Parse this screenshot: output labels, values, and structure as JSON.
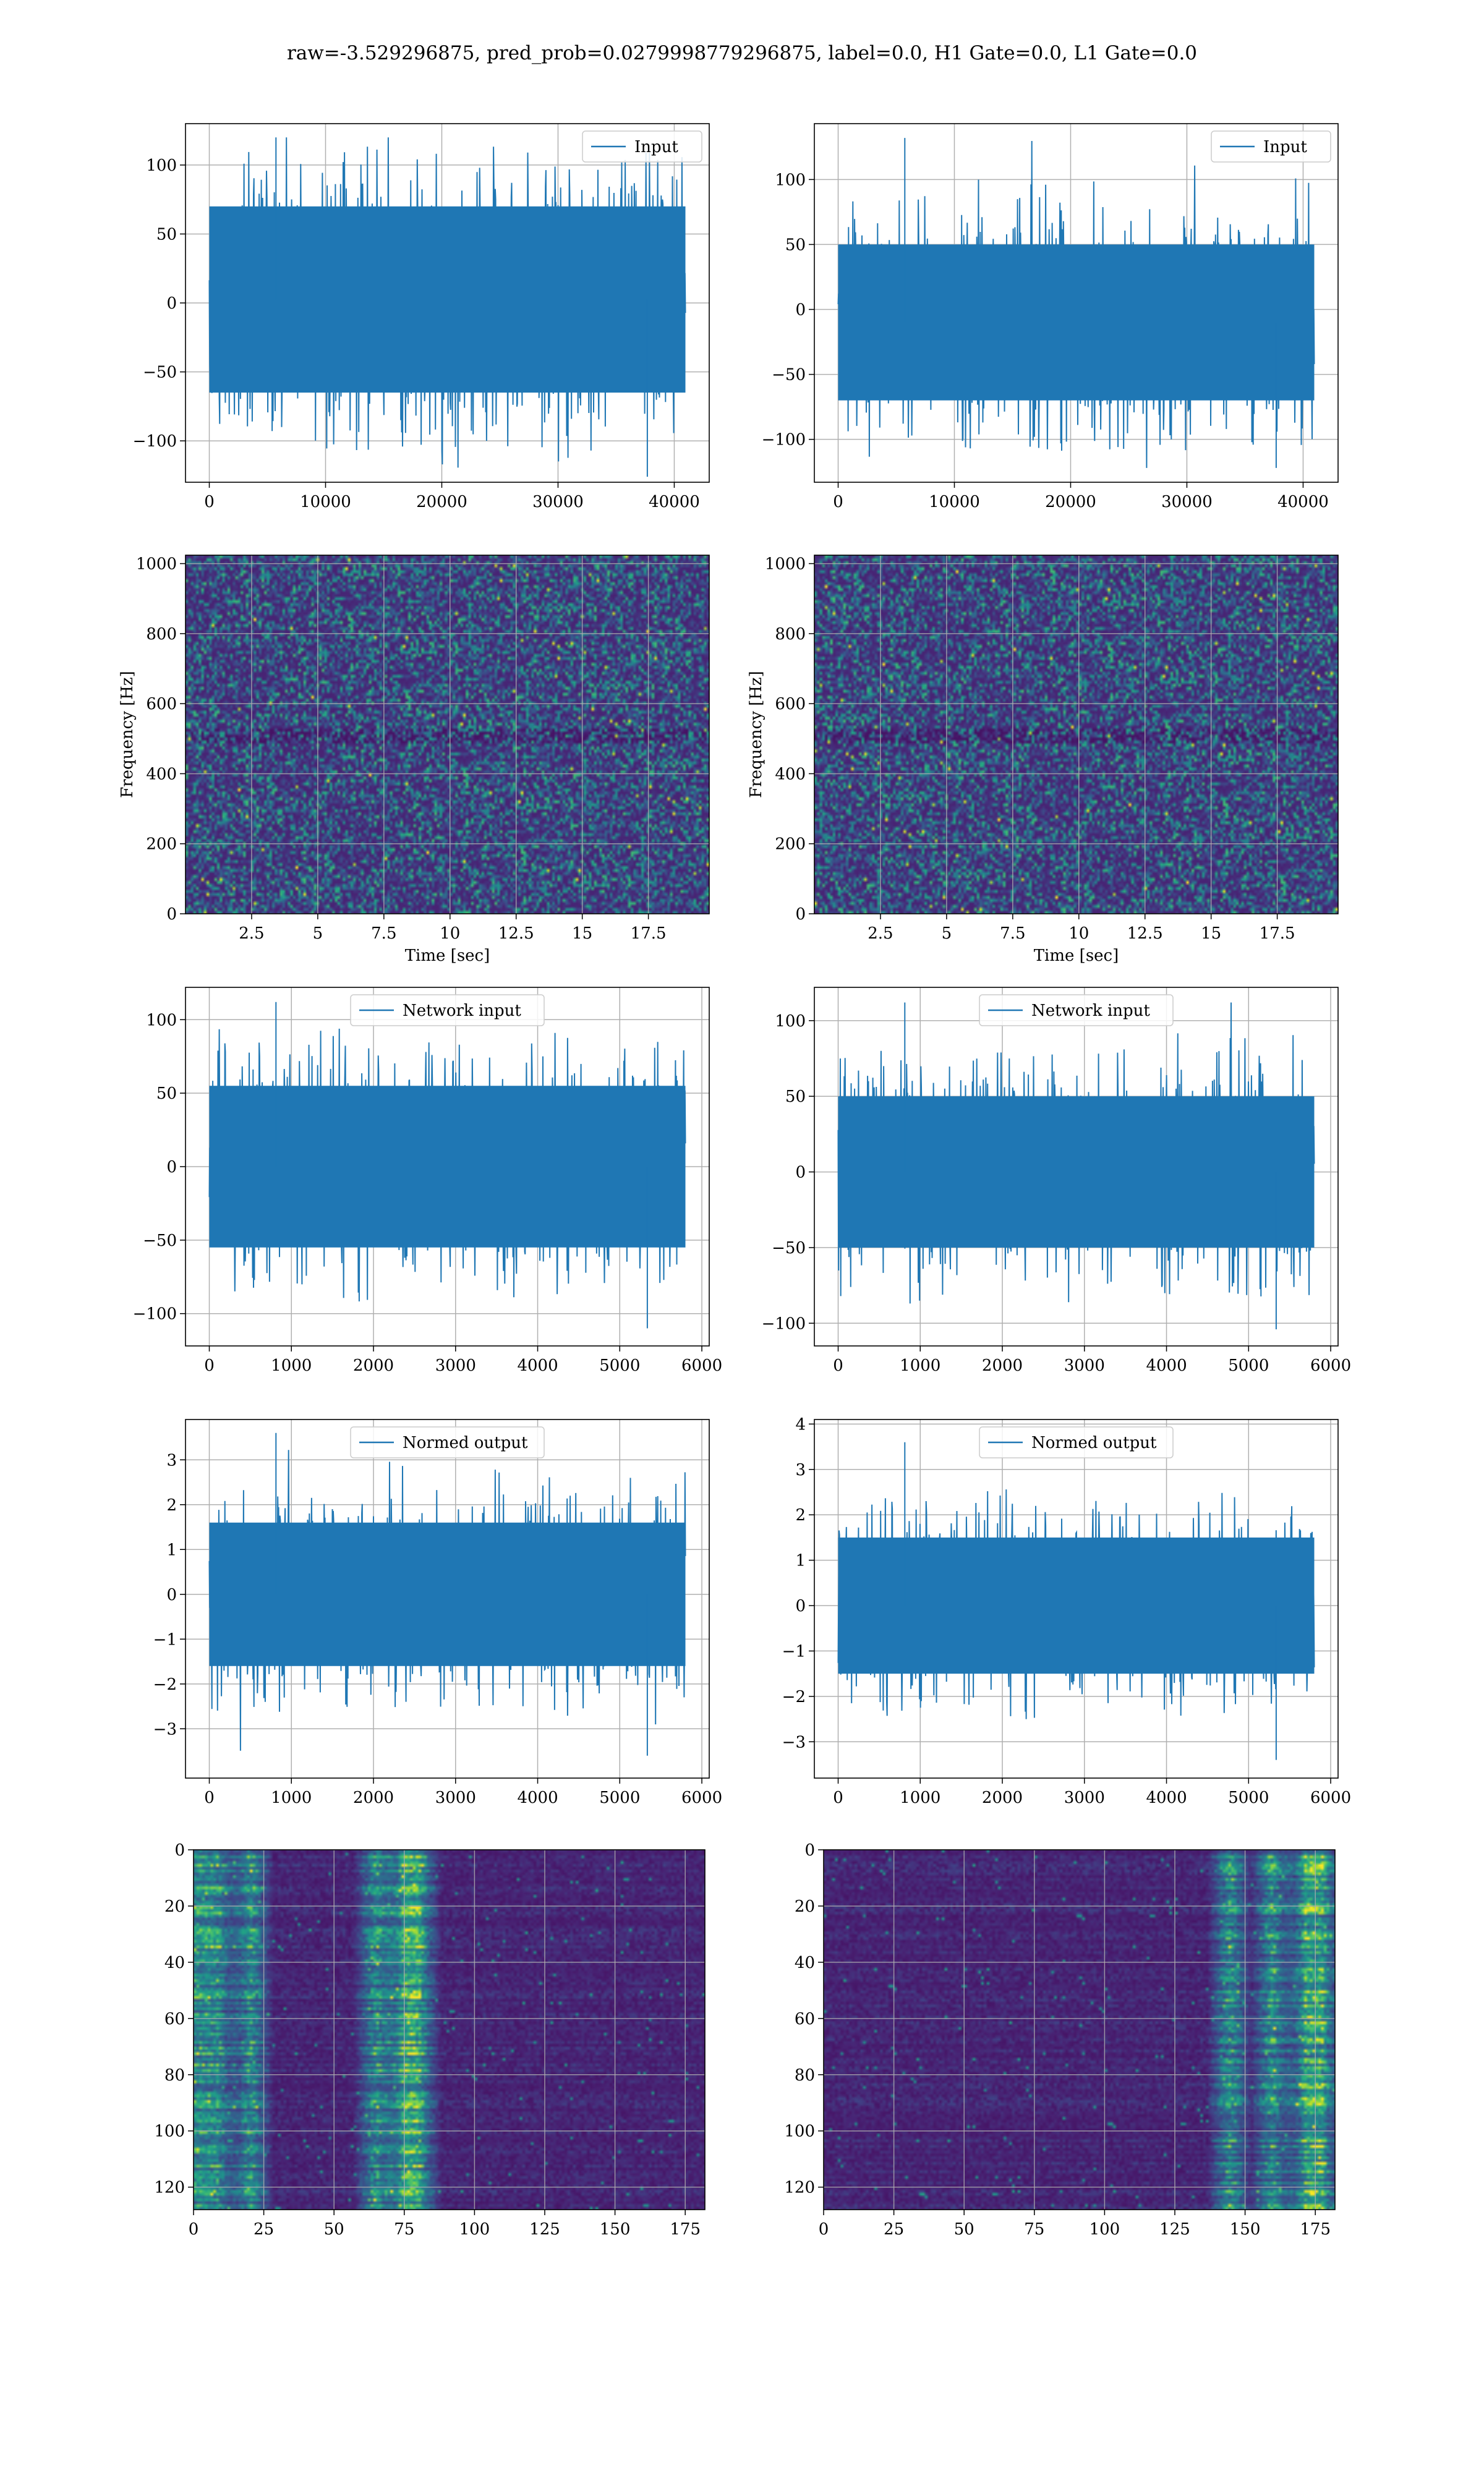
{
  "title": "raw=-3.529296875, pred_prob=0.0279998779296875, label=0.0, H1 Gate=0.0, L1 Gate=0.0",
  "colors": {
    "series": "#1f77b4",
    "grid": "#b0b0b0",
    "spectrogram": "viridis"
  },
  "chart_data": [
    {
      "type": "line",
      "name": "row1-left",
      "legend": "Input",
      "xlim": [
        -2048,
        43008
      ],
      "ylim": [
        -130,
        130
      ],
      "xticks": [
        0,
        10000,
        20000,
        30000,
        40000
      ],
      "yticks": [
        -100,
        -50,
        0,
        50,
        100
      ],
      "x": [
        0,
        40960
      ],
      "envelope_positive": 70,
      "envelope_negative": -65,
      "peak_max": 120,
      "peak_min": -126
    },
    {
      "type": "line",
      "name": "row1-right",
      "legend": "Input",
      "xlim": [
        -2048,
        43008
      ],
      "ylim": [
        -133,
        143
      ],
      "xticks": [
        0,
        10000,
        20000,
        30000,
        40000
      ],
      "yticks": [
        -100,
        -50,
        0,
        50,
        100
      ],
      "x": [
        0,
        40960
      ],
      "envelope_positive": 50,
      "envelope_negative": -70,
      "peak_max": 132,
      "peak_min": -122
    },
    {
      "type": "heatmap",
      "name": "row2-left",
      "colormap": "viridis",
      "xlim": [
        0,
        19.8
      ],
      "ylim": [
        0,
        1024
      ],
      "xticks": [
        2.5,
        5.0,
        7.5,
        10.0,
        12.5,
        15.0,
        17.5
      ],
      "yticks": [
        0,
        200,
        400,
        600,
        800,
        1000
      ],
      "xlabel": "Time [sec]",
      "ylabel": "Frequency [Hz]"
    },
    {
      "type": "heatmap",
      "name": "row2-right",
      "colormap": "viridis",
      "xlim": [
        0,
        19.8
      ],
      "ylim": [
        0,
        1024
      ],
      "xticks": [
        2.5,
        5.0,
        7.5,
        10.0,
        12.5,
        15.0,
        17.5
      ],
      "yticks": [
        0,
        200,
        400,
        600,
        800,
        1000
      ],
      "xlabel": "Time [sec]",
      "ylabel": "Frequency [Hz]"
    },
    {
      "type": "line",
      "name": "row3-left",
      "legend": "Network input",
      "xlim": [
        -290,
        6090
      ],
      "ylim": [
        -122,
        122
      ],
      "xticks": [
        0,
        1000,
        2000,
        3000,
        4000,
        5000,
        6000
      ],
      "yticks": [
        -100,
        -50,
        0,
        50,
        100
      ],
      "x": [
        0,
        5800
      ],
      "envelope_positive": 55,
      "envelope_negative": -55,
      "peak_max": 112,
      "peak_min": -110
    },
    {
      "type": "line",
      "name": "row3-right",
      "legend": "Network input",
      "xlim": [
        -290,
        6090
      ],
      "ylim": [
        -115,
        122
      ],
      "xticks": [
        0,
        1000,
        2000,
        3000,
        4000,
        5000,
        6000
      ],
      "yticks": [
        -100,
        -50,
        0,
        50,
        100
      ],
      "x": [
        0,
        5800
      ],
      "envelope_positive": 50,
      "envelope_negative": -50,
      "peak_max": 112,
      "peak_min": -104
    },
    {
      "type": "line",
      "name": "row4-left",
      "legend": "Normed output",
      "xlim": [
        -290,
        6090
      ],
      "ylim": [
        -4.1,
        3.9
      ],
      "xticks": [
        0,
        1000,
        2000,
        3000,
        4000,
        5000,
        6000
      ],
      "yticks": [
        -3,
        -2,
        -1,
        0,
        1,
        2,
        3
      ],
      "x": [
        0,
        5800
      ],
      "envelope_positive": 1.6,
      "envelope_negative": -1.6,
      "peak_max": 3.6,
      "peak_min": -3.6
    },
    {
      "type": "line",
      "name": "row4-right",
      "legend": "Normed output",
      "xlim": [
        -290,
        6090
      ],
      "ylim": [
        -3.8,
        4.1
      ],
      "xticks": [
        0,
        1000,
        2000,
        3000,
        4000,
        5000,
        6000
      ],
      "yticks": [
        -3,
        -2,
        -1,
        0,
        1,
        2,
        3,
        4
      ],
      "x": [
        0,
        5800
      ],
      "envelope_positive": 1.5,
      "envelope_negative": -1.5,
      "peak_max": 3.6,
      "peak_min": -3.4
    },
    {
      "type": "heatmap",
      "name": "row5-left",
      "colormap": "viridis",
      "xlim": [
        0,
        182
      ],
      "ylim": [
        128,
        0
      ],
      "xticks": [
        0,
        25,
        50,
        75,
        100,
        125,
        150,
        175
      ],
      "yticks": [
        0,
        20,
        40,
        60,
        80,
        100,
        120
      ],
      "hot_columns": [
        0,
        8,
        20,
        65,
        75,
        80
      ]
    },
    {
      "type": "heatmap",
      "name": "row5-right",
      "colormap": "viridis",
      "xlim": [
        0,
        182
      ],
      "ylim": [
        128,
        0
      ],
      "xticks": [
        0,
        25,
        50,
        75,
        100,
        125,
        150,
        175
      ],
      "yticks": [
        0,
        20,
        40,
        60,
        80,
        100,
        120
      ],
      "hot_columns": [
        145,
        160,
        172,
        178
      ]
    }
  ]
}
